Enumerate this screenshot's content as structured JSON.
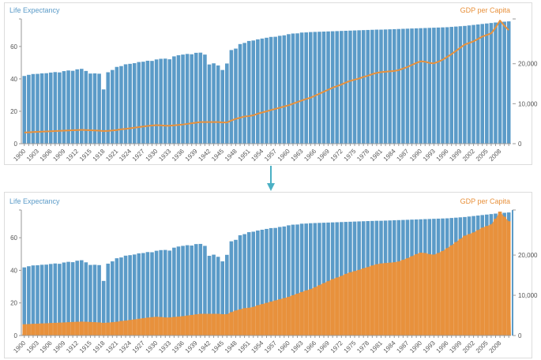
{
  "colors": {
    "life": "#5b9bc8",
    "gdp": "#e8913c",
    "arrow": "#4bb0c4",
    "axis": "#999999",
    "text": "#555555"
  },
  "chart_data": [
    {
      "type": "bar+line",
      "title_left": "Life Expectancy",
      "title_right": "GDP per Capita",
      "x": [
        1900,
        1901,
        1902,
        1903,
        1904,
        1905,
        1906,
        1907,
        1908,
        1909,
        1910,
        1911,
        1912,
        1913,
        1914,
        1915,
        1916,
        1917,
        1918,
        1919,
        1920,
        1921,
        1922,
        1923,
        1924,
        1925,
        1926,
        1927,
        1928,
        1929,
        1930,
        1931,
        1932,
        1933,
        1934,
        1935,
        1936,
        1937,
        1938,
        1939,
        1940,
        1941,
        1942,
        1943,
        1944,
        1945,
        1946,
        1947,
        1948,
        1949,
        1950,
        1951,
        1952,
        1953,
        1954,
        1955,
        1956,
        1957,
        1958,
        1959,
        1960,
        1961,
        1962,
        1963,
        1964,
        1965,
        1966,
        1967,
        1968,
        1969,
        1970,
        1971,
        1972,
        1973,
        1974,
        1975,
        1976,
        1977,
        1978,
        1979,
        1980,
        1981,
        1982,
        1983,
        1984,
        1985,
        1986,
        1987,
        1988,
        1989,
        1990,
        1991,
        1992,
        1993,
        1994,
        1995,
        1996,
        1997,
        1998,
        1999,
        2000,
        2001,
        2002,
        2003,
        2004,
        2005,
        2006,
        2007,
        2008,
        2009,
        2010
      ],
      "x_tick_labels": [
        "1900",
        "1903",
        "1906",
        "1909",
        "1912",
        "1915",
        "1918",
        "1921",
        "1924",
        "1927",
        "1930",
        "1933",
        "1936",
        "1939",
        "1942",
        "1945",
        "1948",
        "1951",
        "1954",
        "1957",
        "1960",
        "1963",
        "1966",
        "1969",
        "1972",
        "1975",
        "1978",
        "1981",
        "1984",
        "1987",
        "1990",
        "1993",
        "1996",
        "1999",
        "2002",
        "2005",
        "2008"
      ],
      "left_axis": {
        "ticks": [
          "0",
          "20",
          "40",
          "60"
        ],
        "tick_values": [
          0,
          20,
          40,
          60
        ],
        "range": [
          0,
          77
        ]
      },
      "right_axis": {
        "ticks": [
          "0",
          "10,000",
          "20,000"
        ],
        "tick_values": [
          0,
          10000,
          20000
        ],
        "range": [
          0,
          31200
        ]
      },
      "series": [
        {
          "name": "Life Expectancy",
          "kind": "bar",
          "values": [
            41.8,
            42.5,
            43,
            43.1,
            43.4,
            43.5,
            43.9,
            44.2,
            44,
            44.8,
            45.2,
            45,
            45.9,
            46.2,
            44.9,
            43.3,
            43.4,
            43.2,
            33.5,
            44.1,
            45.5,
            47.4,
            47.9,
            49,
            49.3,
            49.7,
            50.4,
            50.6,
            51.2,
            51.1,
            52,
            52.4,
            52.5,
            52.1,
            53.9,
            54.6,
            55,
            55.4,
            55.2,
            56.1,
            56.2,
            55,
            48.9,
            49.6,
            48.3,
            45.5,
            49.5,
            57.8,
            58.7,
            61.5,
            62.2,
            63.4,
            63.7,
            64.4,
            64.9,
            65.4,
            65.9,
            66,
            66.6,
            66.9,
            67.6,
            68,
            68.1,
            68.6,
            68.7,
            68.9,
            69,
            69.1,
            69.2,
            69.3,
            69.4,
            69.5,
            69.6,
            69.7,
            69.8,
            69.9,
            70,
            70.1,
            70.2,
            70.3,
            70.4,
            70.4,
            70.5,
            70.6,
            70.7,
            70.8,
            70.9,
            71,
            71.1,
            71.2,
            71.3,
            71.4,
            71.5,
            71.6,
            71.7,
            71.8,
            71.9,
            72.1,
            72.3,
            72.5,
            72.7,
            73,
            73.3,
            73.6,
            73.9,
            74.2,
            74.5,
            74.8,
            75.1,
            75.3,
            75.5
          ]
        },
        {
          "name": "GDP per Capita",
          "kind": "line",
          "values": [
            2800,
            2850,
            2900,
            2950,
            3000,
            3050,
            3100,
            3150,
            3200,
            3250,
            3300,
            3350,
            3400,
            3450,
            3400,
            3350,
            3300,
            3250,
            3150,
            3200,
            3300,
            3400,
            3600,
            3700,
            3850,
            4000,
            4150,
            4300,
            4450,
            4550,
            4650,
            4600,
            4500,
            4500,
            4600,
            4700,
            4800,
            4950,
            5100,
            5250,
            5400,
            5400,
            5400,
            5400,
            5400,
            5300,
            5300,
            5800,
            6200,
            6500,
            6800,
            6900,
            7100,
            7500,
            7800,
            8100,
            8400,
            8700,
            9000,
            9300,
            9600,
            10000,
            10400,
            10800,
            11200,
            11500,
            12000,
            12500,
            13000,
            13500,
            14000,
            14400,
            14800,
            15300,
            15700,
            16000,
            16300,
            16700,
            17000,
            17400,
            17700,
            17900,
            18000,
            18100,
            18200,
            18400,
            18800,
            19200,
            19700,
            20200,
            20600,
            20500,
            20200,
            20100,
            20500,
            21000,
            21700,
            22400,
            23200,
            24000,
            24800,
            25200,
            25600,
            26200,
            26800,
            27200,
            27600,
            29000,
            30800,
            29500,
            28400
          ]
        }
      ]
    }
  ]
}
